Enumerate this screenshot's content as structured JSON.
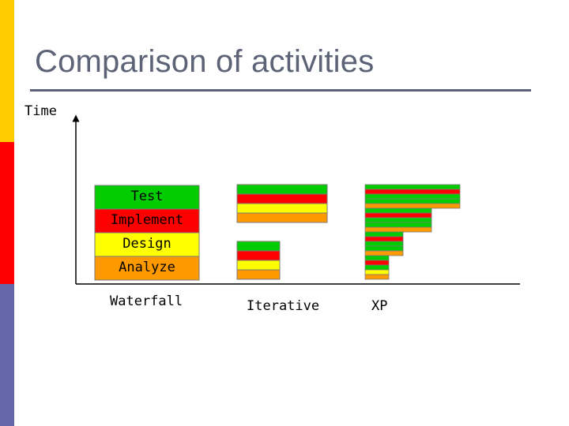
{
  "slide": {
    "title": "Comparison of activities",
    "time_axis_label": "Time"
  },
  "stages": [
    {
      "label": "Test",
      "color": "#00cc00"
    },
    {
      "label": "Implement",
      "color": "#ff0000"
    },
    {
      "label": "Design",
      "color": "#ffff00"
    },
    {
      "label": "Analyze",
      "color": "#ff9900"
    }
  ],
  "methods": {
    "waterfall": "Waterfall",
    "iterative": "Iterative",
    "xp": "XP"
  },
  "colors": {
    "accent_title": "#5d6377",
    "stripe_yellow": "#ffcc00",
    "stripe_red": "#ff0000",
    "stripe_purple": "#6666aa"
  }
}
